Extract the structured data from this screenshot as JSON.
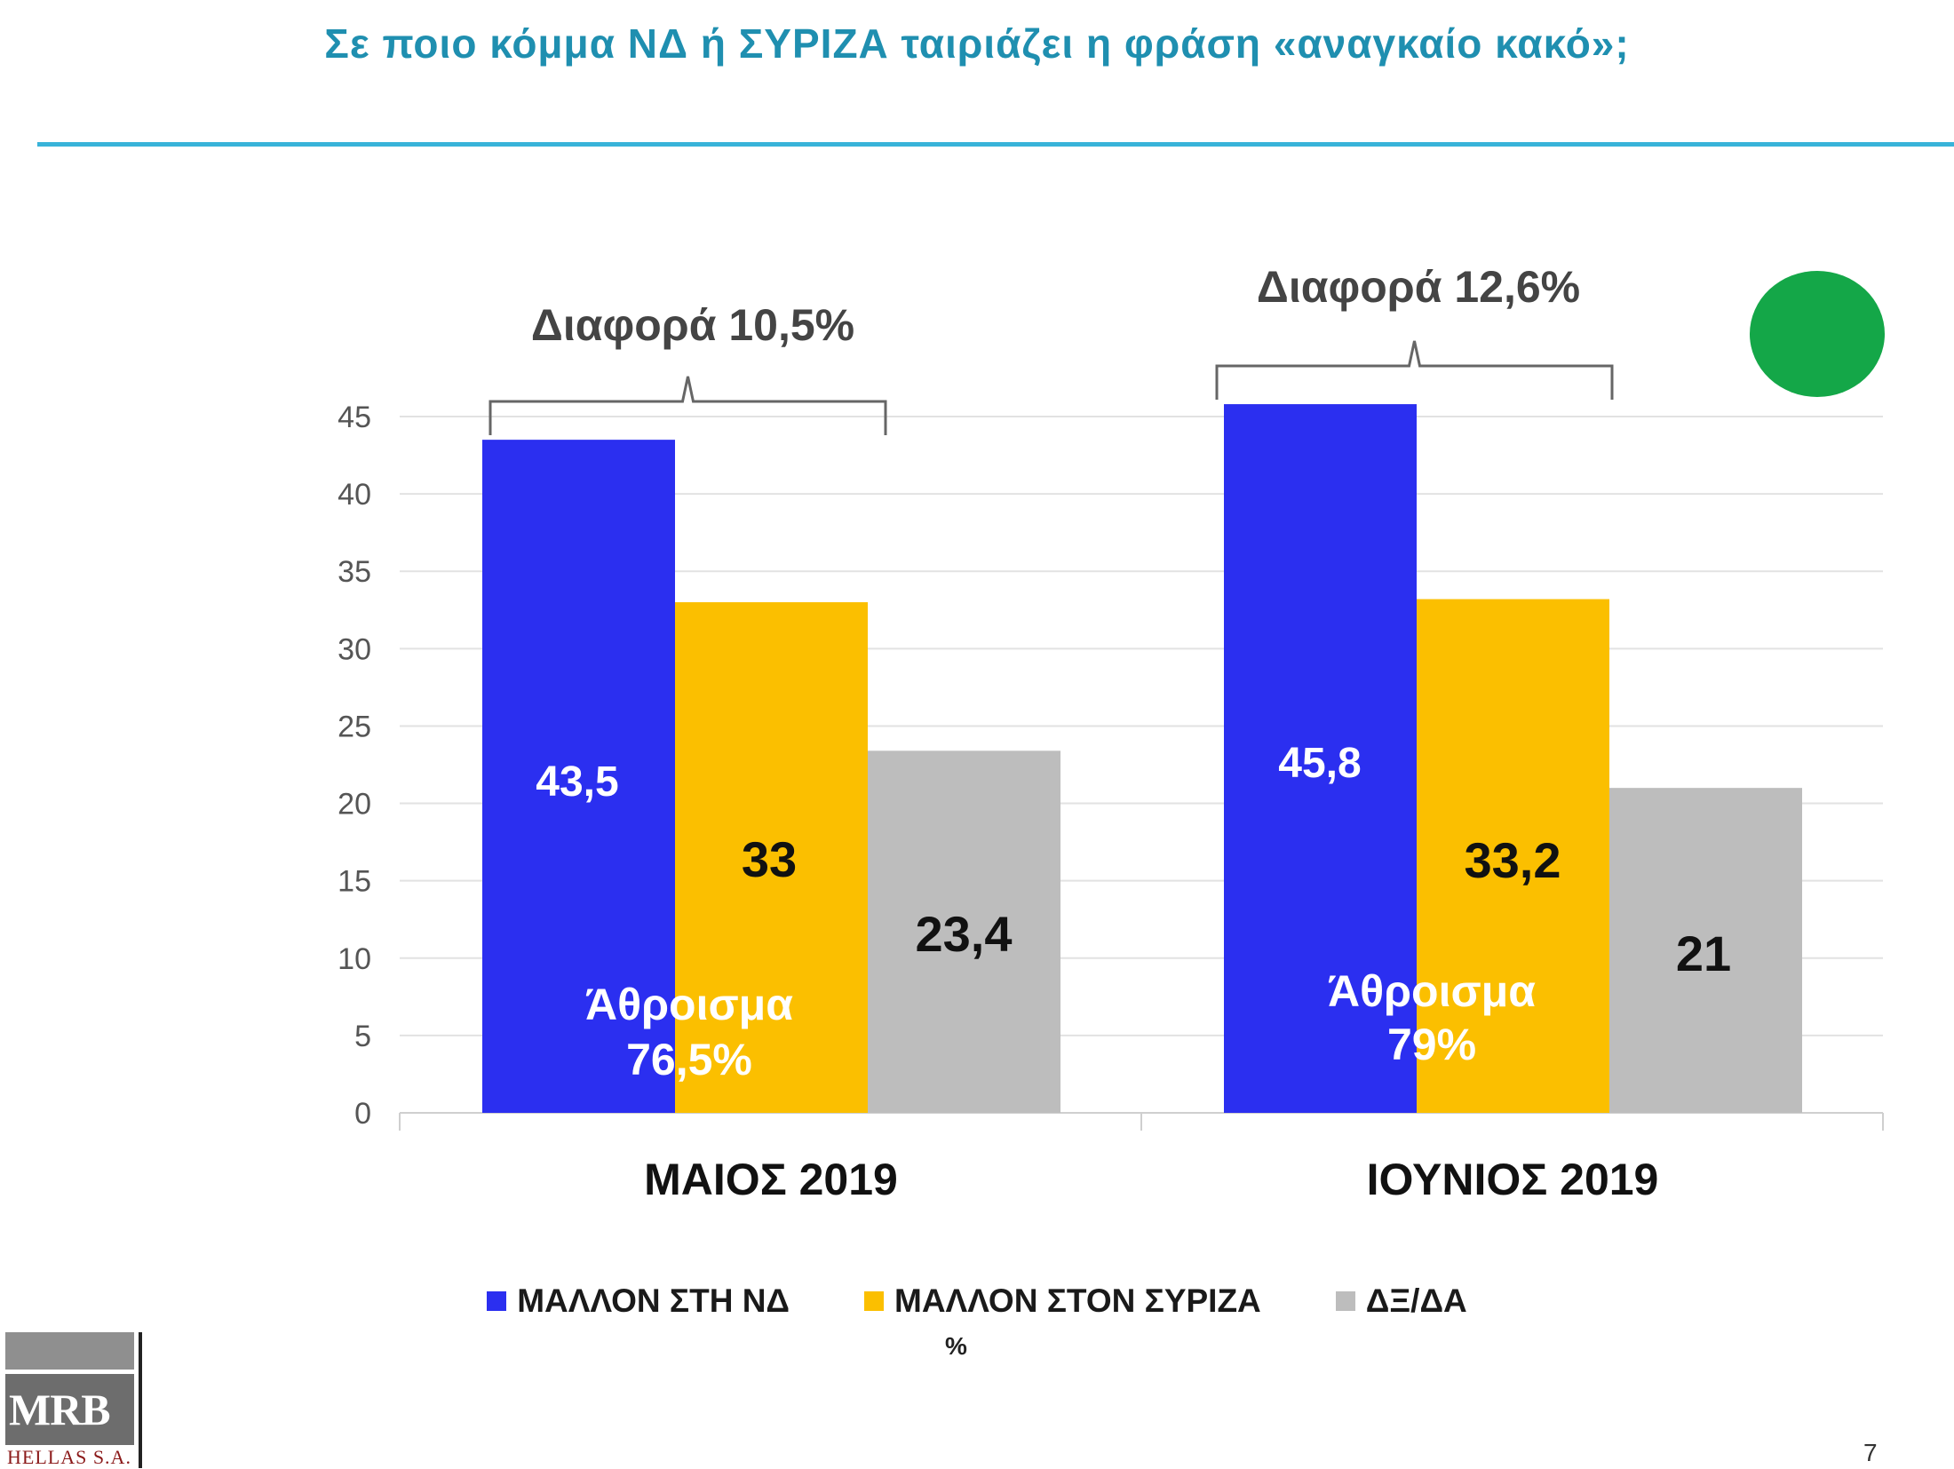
{
  "slide": {
    "title": "Σε ποιο κόμμα ΝΔ ή ΣΥΡΙΖΑ ταιριάζει η φράση «αναγκαίο κακό»;",
    "unit_label": "%",
    "page_number": "7"
  },
  "logo": {
    "name": "MRB",
    "sub": "HELLAS S.A."
  },
  "chart_data": {
    "type": "bar",
    "categories": [
      "ΜΑΙΟΣ 2019",
      "ΙΟΥΝΙΟΣ 2019"
    ],
    "series": [
      {
        "name": "ΜΑΛΛΟΝ ΣΤΗ ΝΔ",
        "color": "#2b2ff0",
        "values": [
          43.5,
          45.8
        ],
        "labels": [
          "43,5",
          "45,8"
        ],
        "label_color": "#ffffff"
      },
      {
        "name": "ΜΑΛΛΟΝ ΣΤΟΝ ΣΥΡΙΖΑ",
        "color": "#fbbf00",
        "values": [
          33,
          33.2
        ],
        "labels": [
          "33",
          "33,2"
        ],
        "label_color": "#111111"
      },
      {
        "name": "ΔΞ/ΔΑ",
        "color": "#bdbdbd",
        "values": [
          23.4,
          21
        ],
        "labels": [
          "23,4",
          "21"
        ],
        "label_color": "#111111"
      }
    ],
    "yticks": [
      "0",
      "5",
      "10",
      "15",
      "20",
      "25",
      "30",
      "35",
      "40",
      "45"
    ],
    "ylim": [
      0,
      45
    ],
    "grid": true,
    "legend_position": "bottom",
    "annotations": {
      "differences": [
        "Διαφορά 10,5%",
        "Διαφορά 12,6%"
      ],
      "sums": [
        {
          "line1": "Άθροισμα",
          "line2": "76,5%"
        },
        {
          "line1": "Άθροισμα",
          "line2": "79%"
        }
      ]
    }
  },
  "status": {
    "color": "#14a748"
  }
}
